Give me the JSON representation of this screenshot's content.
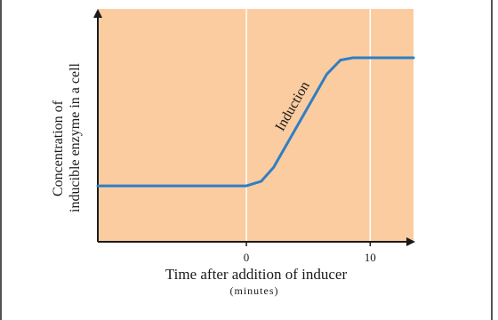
{
  "chart_data": {
    "type": "line",
    "title": "",
    "xlabel": "Time after addition of inducer",
    "xlabel_sub": "(minutes)",
    "ylabel_line1": "Concentration of",
    "ylabel_line2": "inducible enzyme in a cell",
    "xlim": [
      -12,
      13.5
    ],
    "ylim": [
      0,
      1
    ],
    "x_ticks": [
      {
        "value": 0,
        "label": "0"
      },
      {
        "value": 10,
        "label": "10"
      }
    ],
    "grid": {
      "vertical_at": [
        0,
        10
      ]
    },
    "series": [
      {
        "points": [
          {
            "x": -12,
            "y": 0.24
          },
          {
            "x": 0,
            "y": 0.24
          },
          {
            "x": 1.2,
            "y": 0.26
          },
          {
            "x": 2.2,
            "y": 0.32
          },
          {
            "x": 6.5,
            "y": 0.72
          },
          {
            "x": 7.6,
            "y": 0.78
          },
          {
            "x": 8.6,
            "y": 0.79
          },
          {
            "x": 13.5,
            "y": 0.79
          }
        ]
      }
    ],
    "annotation": {
      "text": "Induction",
      "x": 4.6,
      "y": 0.55
    }
  },
  "colors": {
    "plot_background": "#fbcca0",
    "line": "#2f7ec4",
    "axis": "#1a1a1a",
    "gridline": "#ffffff"
  }
}
